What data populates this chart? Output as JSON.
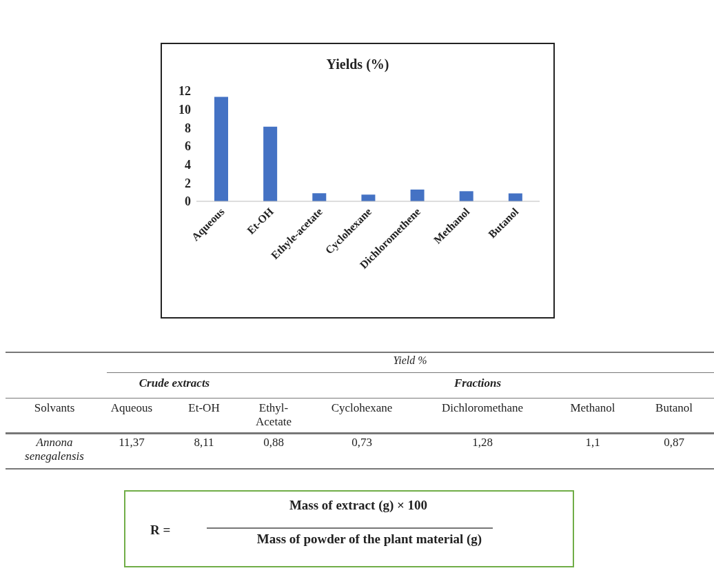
{
  "chart_data": {
    "type": "bar",
    "title": "Yields (%)",
    "categories": [
      "Aqueous",
      "Et-OH",
      "Ethyle-acetate",
      "Cyclohexane",
      "Dichloromethene",
      "Methanol",
      "Butanol"
    ],
    "values": [
      11.37,
      8.11,
      0.88,
      0.73,
      1.28,
      1.1,
      0.87
    ],
    "color": "#4472c4",
    "ylim": [
      0,
      12
    ],
    "yticks": [
      0,
      2,
      4,
      6,
      8,
      10,
      12
    ],
    "annotations": [
      "Yield %",
      "Crude extracts",
      "Fractions",
      "Solvants",
      "Aqueous",
      "Et-OH",
      "Ethyl-Acetate",
      "Cyclohexane",
      "Dichloromethane",
      "Methanol",
      "Butanol",
      "Annona senegalensis",
      "11,37",
      "8,11",
      "0,88",
      "0,73",
      "1,28",
      "1,1",
      "0,87",
      "R =",
      "Mass of extract (g) × 100",
      "Mass of powder of the plant material (g)"
    ]
  }
}
